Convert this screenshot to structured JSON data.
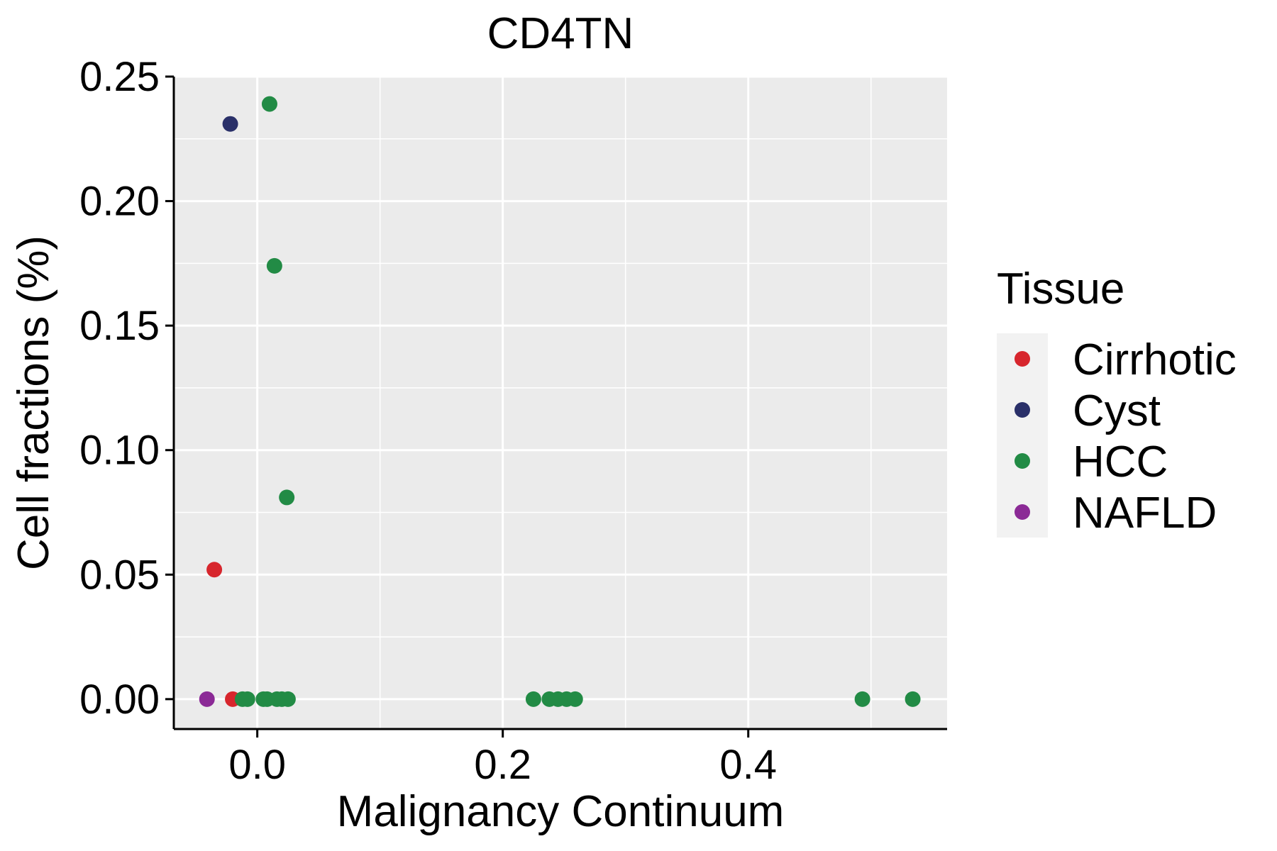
{
  "chart_data": {
    "type": "scatter",
    "title": "CD4TN",
    "xlabel": "Malignancy Continuum",
    "ylabel": "Cell fractions (%)",
    "xlim": [
      -0.068,
      0.562
    ],
    "ylim": [
      -0.012,
      0.25
    ],
    "x_ticks": [
      0.0,
      0.2,
      0.4
    ],
    "x_tick_labels": [
      "0.0",
      "0.2",
      "0.4"
    ],
    "y_ticks": [
      0.0,
      0.05,
      0.1,
      0.15,
      0.2,
      0.25
    ],
    "y_tick_labels": [
      "0.00",
      "0.05",
      "0.10",
      "0.15",
      "0.20",
      "0.25"
    ],
    "grid": true,
    "legend": {
      "title": "Tissue",
      "placement": "right"
    },
    "series": [
      {
        "name": "Cirrhotic",
        "color": "#d7262d",
        "points": [
          [
            -0.035,
            0.052
          ],
          [
            -0.02,
            0.0
          ]
        ]
      },
      {
        "name": "Cyst",
        "color": "#2a3069",
        "points": [
          [
            -0.022,
            0.231
          ]
        ]
      },
      {
        "name": "HCC",
        "color": "#228b45",
        "points": [
          [
            0.01,
            0.239
          ],
          [
            0.014,
            0.174
          ],
          [
            0.024,
            0.081
          ],
          [
            -0.012,
            0.0
          ],
          [
            -0.008,
            0.0
          ],
          [
            0.005,
            0.0
          ],
          [
            0.008,
            0.0
          ],
          [
            0.016,
            0.0
          ],
          [
            0.02,
            0.0
          ],
          [
            0.025,
            0.0
          ],
          [
            0.225,
            0.0
          ],
          [
            0.238,
            0.0
          ],
          [
            0.245,
            0.0
          ],
          [
            0.252,
            0.0
          ],
          [
            0.259,
            0.0
          ],
          [
            0.493,
            0.0
          ],
          [
            0.534,
            0.0
          ]
        ]
      },
      {
        "name": "NAFLD",
        "color": "#8b2a96",
        "points": [
          [
            -0.041,
            0.0
          ]
        ]
      }
    ]
  }
}
